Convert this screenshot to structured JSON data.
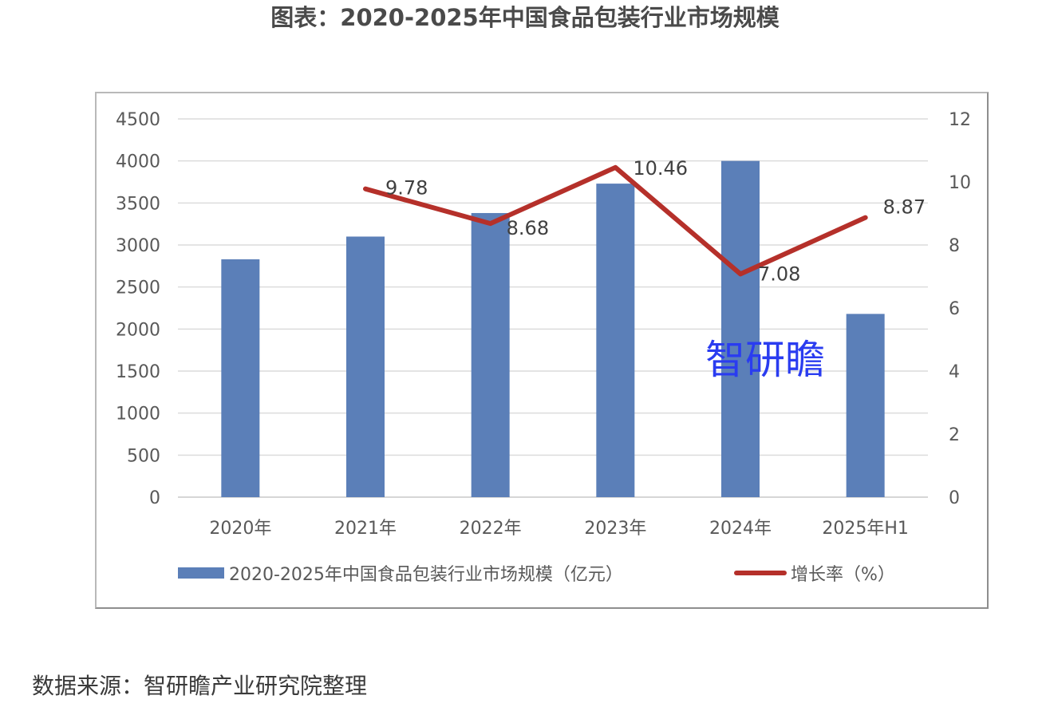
{
  "title": "图表：2020-2025年中国食品包装行业市场规模",
  "source": "数据来源：智研瞻产业研究院整理",
  "watermark": "智研瞻",
  "chart_data": {
    "type": "bar",
    "categories": [
      "2020年",
      "2021年",
      "2022年",
      "2023年",
      "2024年",
      "2025年H1"
    ],
    "series": [
      {
        "name": "2020-2025年中国食品包装行业市场规模（亿元）",
        "type": "bar",
        "axis": "left",
        "color": "#5b7fb8",
        "values": [
          2830,
          3100,
          3380,
          3730,
          4000,
          2180
        ]
      },
      {
        "name": "增长率（%）",
        "type": "line",
        "axis": "right",
        "color": "#b5302a",
        "values": [
          null,
          9.78,
          8.68,
          10.46,
          7.08,
          8.87
        ],
        "labels": [
          "",
          "9.78",
          "8.68",
          "10.46",
          "7.08",
          "8.87"
        ]
      }
    ],
    "ylim": [
      0,
      4500
    ],
    "y_ticks": [
      "0",
      "500",
      "1000",
      "1500",
      "2000",
      "2500",
      "3000",
      "3500",
      "4000",
      "4500"
    ],
    "y2lim": [
      0,
      12
    ],
    "y2_ticks": [
      "0",
      "2",
      "4",
      "6",
      "8",
      "10",
      "12"
    ],
    "grid": true,
    "legend_position": "bottom"
  }
}
